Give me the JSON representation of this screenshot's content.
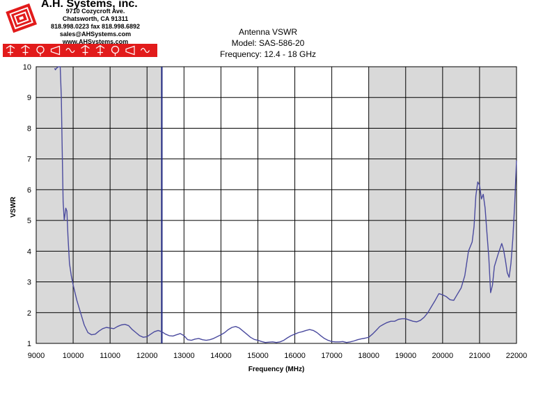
{
  "company": {
    "name": "A.H. Systems, inc.",
    "address": "9710 Cozycroft Ave.",
    "city": "Chatsworth, CA 91311",
    "phone": "818.998.0223 fax 818.998.6892",
    "web": "sales@AHSystems.com www.AHSystems.com",
    "brand_color": "#e21b1b",
    "icons": [
      "antenna-icon",
      "antenna-icon",
      "loop-antenna-icon",
      "horn-antenna-icon",
      "waveguide-icon",
      "antenna-icon",
      "antenna-icon",
      "loop-antenna-icon",
      "horn-antenna-icon",
      "waveguide-icon"
    ]
  },
  "chart_data": {
    "type": "line",
    "title": [
      "Antenna VSWR",
      "Model: SAS-586-20",
      "Frequency: 12.4 - 18 GHz"
    ],
    "xlabel": "Frequency (MHz)",
    "ylabel": "VSWR",
    "xlim": [
      9000,
      22000
    ],
    "ylim": [
      1,
      10
    ],
    "x_ticks": [
      9000,
      10000,
      11000,
      12000,
      13000,
      14000,
      15000,
      16000,
      17000,
      18000,
      19000,
      20000,
      21000,
      22000
    ],
    "y_ticks": [
      1,
      2,
      3,
      4,
      5,
      6,
      7,
      8,
      9,
      10
    ],
    "grid": true,
    "band_in_range": [
      12400,
      18000
    ],
    "shaded_regions": [
      [
        9000,
        12400
      ],
      [
        18000,
        22000
      ]
    ],
    "line_color": "#4a4a9e",
    "band_edge_color": "#1a237e",
    "series": [
      {
        "x": [
          9500,
          9520,
          9550,
          9600,
          9650,
          9680,
          9700,
          9730,
          9760,
          9800,
          9830,
          9860,
          9900,
          9950,
          10000,
          10100,
          10200,
          10300,
          10400,
          10500,
          10600,
          10700,
          10800,
          10900,
          11000,
          11100,
          11200,
          11300,
          11400,
          11500,
          11600,
          11700,
          11800,
          11900,
          12000,
          12100,
          12200,
          12300,
          12400,
          12500,
          12600,
          12700,
          12800,
          12900,
          13000,
          13100,
          13200,
          13300,
          13400,
          13500,
          13600,
          13700,
          13800,
          13900,
          14000,
          14100,
          14200,
          14300,
          14400,
          14500,
          14600,
          14700,
          14800,
          14900,
          15000,
          15100,
          15200,
          15300,
          15400,
          15500,
          15600,
          15700,
          15800,
          15900,
          16000,
          16100,
          16200,
          16300,
          16400,
          16500,
          16600,
          16700,
          16800,
          16900,
          17000,
          17100,
          17200,
          17300,
          17400,
          17500,
          17600,
          17700,
          17800,
          17900,
          18000,
          18100,
          18200,
          18300,
          18400,
          18500,
          18600,
          18700,
          18800,
          18900,
          19000,
          19100,
          19200,
          19300,
          19400,
          19500,
          19600,
          19700,
          19800,
          19900,
          20000,
          20100,
          20200,
          20300,
          20400,
          20500,
          20600,
          20700,
          20800,
          20850,
          20900,
          20950,
          21000,
          21050,
          21100,
          21150,
          21200,
          21250,
          21300,
          21350,
          21400,
          21500,
          21600,
          21650,
          21700,
          21750,
          21800,
          21850,
          21900,
          21950,
          22000
        ],
        "values": [
          9.95,
          9.9,
          9.95,
          10.0,
          10.0,
          9.0,
          7.5,
          5.6,
          5.0,
          5.4,
          5.3,
          4.5,
          3.6,
          3.2,
          2.9,
          2.4,
          2.0,
          1.6,
          1.35,
          1.28,
          1.3,
          1.4,
          1.48,
          1.52,
          1.5,
          1.48,
          1.55,
          1.6,
          1.62,
          1.58,
          1.45,
          1.35,
          1.25,
          1.2,
          1.22,
          1.3,
          1.38,
          1.42,
          1.38,
          1.3,
          1.25,
          1.24,
          1.28,
          1.32,
          1.25,
          1.12,
          1.1,
          1.14,
          1.16,
          1.12,
          1.1,
          1.12,
          1.16,
          1.22,
          1.28,
          1.35,
          1.45,
          1.52,
          1.55,
          1.5,
          1.4,
          1.3,
          1.2,
          1.13,
          1.1,
          1.06,
          1.03,
          1.04,
          1.05,
          1.03,
          1.05,
          1.1,
          1.18,
          1.25,
          1.3,
          1.35,
          1.38,
          1.42,
          1.45,
          1.42,
          1.35,
          1.25,
          1.16,
          1.1,
          1.06,
          1.05,
          1.05,
          1.06,
          1.03,
          1.05,
          1.08,
          1.12,
          1.15,
          1.17,
          1.2,
          1.3,
          1.42,
          1.55,
          1.62,
          1.68,
          1.72,
          1.72,
          1.78,
          1.8,
          1.8,
          1.76,
          1.72,
          1.7,
          1.75,
          1.85,
          2.0,
          2.2,
          2.4,
          2.62,
          2.58,
          2.52,
          2.42,
          2.4,
          2.6,
          2.8,
          3.2,
          4.0,
          4.3,
          4.8,
          5.8,
          6.25,
          6.15,
          5.7,
          5.85,
          5.4,
          4.6,
          3.8,
          2.65,
          2.9,
          3.5,
          3.9,
          4.25,
          4.05,
          3.7,
          3.3,
          3.15,
          3.6,
          4.4,
          5.5,
          6.95
        ]
      }
    ]
  }
}
